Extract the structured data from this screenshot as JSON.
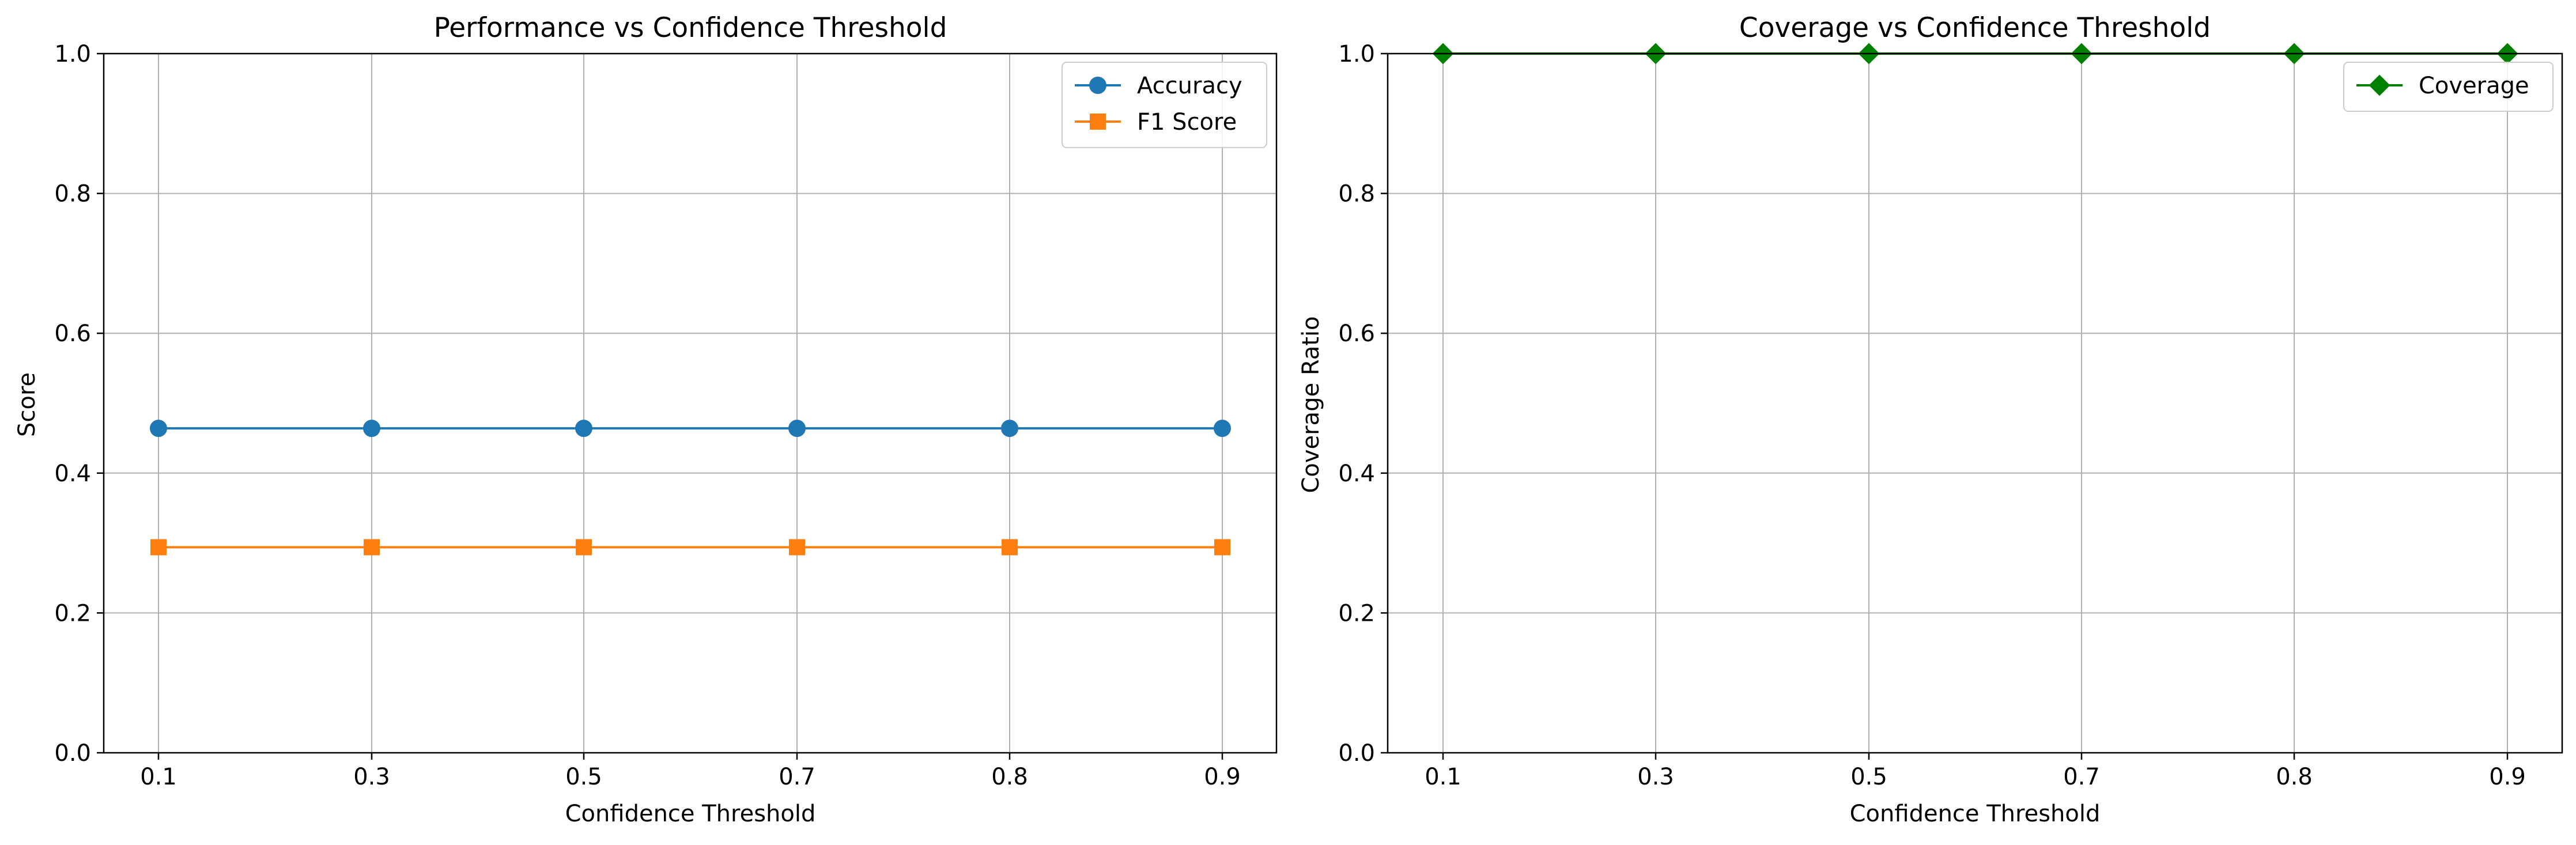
{
  "chart_data": [
    {
      "type": "line",
      "title": "Performance vs Confidence Threshold",
      "xlabel": "Confidence Threshold",
      "ylabel": "Score",
      "categories": [
        "0.1",
        "0.3",
        "0.5",
        "0.7",
        "0.8",
        "0.9"
      ],
      "ylim": [
        0,
        1
      ],
      "yticks": [
        "0.0",
        "0.2",
        "0.4",
        "0.6",
        "0.8",
        "1.0"
      ],
      "grid": true,
      "legend_position": "upper right",
      "series": [
        {
          "name": "Accuracy",
          "values": [
            0.464,
            0.464,
            0.464,
            0.464,
            0.464,
            0.464
          ],
          "color": "#1f77b4",
          "marker": "circle"
        },
        {
          "name": "F1 Score",
          "values": [
            0.294,
            0.294,
            0.294,
            0.294,
            0.294,
            0.294
          ],
          "color": "#ff7f0e",
          "marker": "square"
        }
      ]
    },
    {
      "type": "line",
      "title": "Coverage vs Confidence Threshold",
      "xlabel": "Confidence Threshold",
      "ylabel": "Coverage Ratio",
      "categories": [
        "0.1",
        "0.3",
        "0.5",
        "0.7",
        "0.8",
        "0.9"
      ],
      "ylim": [
        0,
        1
      ],
      "yticks": [
        "0.0",
        "0.2",
        "0.4",
        "0.6",
        "0.8",
        "1.0"
      ],
      "grid": true,
      "legend_position": "upper right",
      "series": [
        {
          "name": "Coverage",
          "values": [
            1.0,
            1.0,
            1.0,
            1.0,
            1.0,
            1.0
          ],
          "color": "#008000",
          "marker": "diamond"
        }
      ]
    }
  ]
}
